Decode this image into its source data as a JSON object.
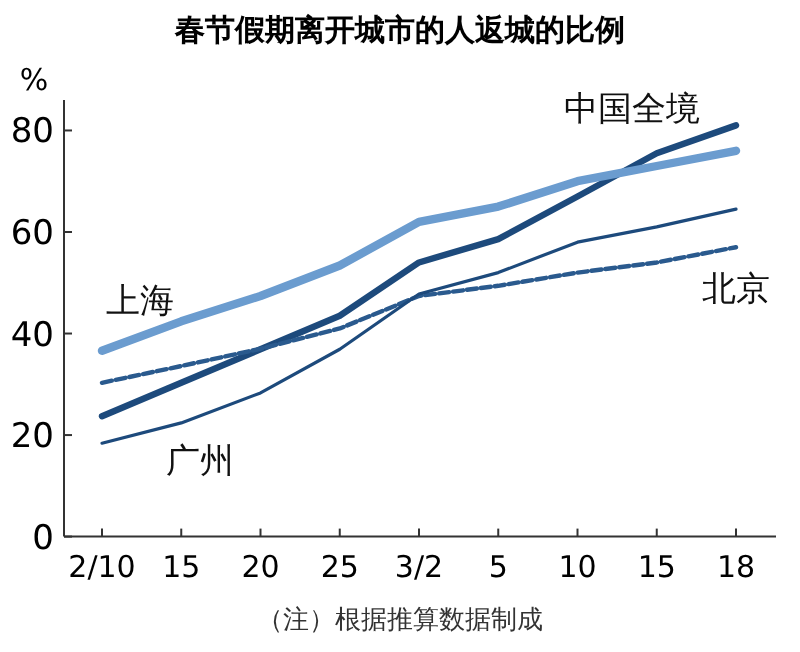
{
  "chart_data": {
    "type": "line",
    "title": "春节假期离开城市的人返城的比例",
    "ylabel": "%",
    "categories": [
      "2/10",
      "15",
      "20",
      "25",
      "3/2",
      "5",
      "10",
      "15",
      "18"
    ],
    "series": [
      {
        "name": "中国全境",
        "color": "#1d4a7c",
        "line_style": "solid",
        "values": [
          23.7,
          30.3,
          36.9,
          43.5,
          54,
          58.6,
          67,
          75.5,
          81
        ]
      },
      {
        "name": "上海",
        "color": "#6b9ccf",
        "line_style": "solid",
        "values": [
          36.6,
          42.4,
          47.4,
          53.4,
          62,
          65,
          70,
          73,
          76
        ]
      },
      {
        "name": "北京",
        "color": "#2a5a8e",
        "line_style": "dashed",
        "values": [
          30.3,
          33.6,
          37,
          41,
          47.4,
          49.4,
          52,
          54,
          57
        ]
      },
      {
        "name": "广州",
        "color": "#1d4a7c",
        "line_style": "solid",
        "values": [
          18.4,
          22.4,
          28.3,
          36.9,
          47.8,
          52,
          58,
          61,
          64.5
        ]
      }
    ],
    "ylim": [
      0,
      86
    ],
    "yticks": [
      0,
      20,
      40,
      60,
      80
    ],
    "grid": false,
    "legend": false,
    "annotations": [
      "（注）根据推算数据制成"
    ]
  }
}
